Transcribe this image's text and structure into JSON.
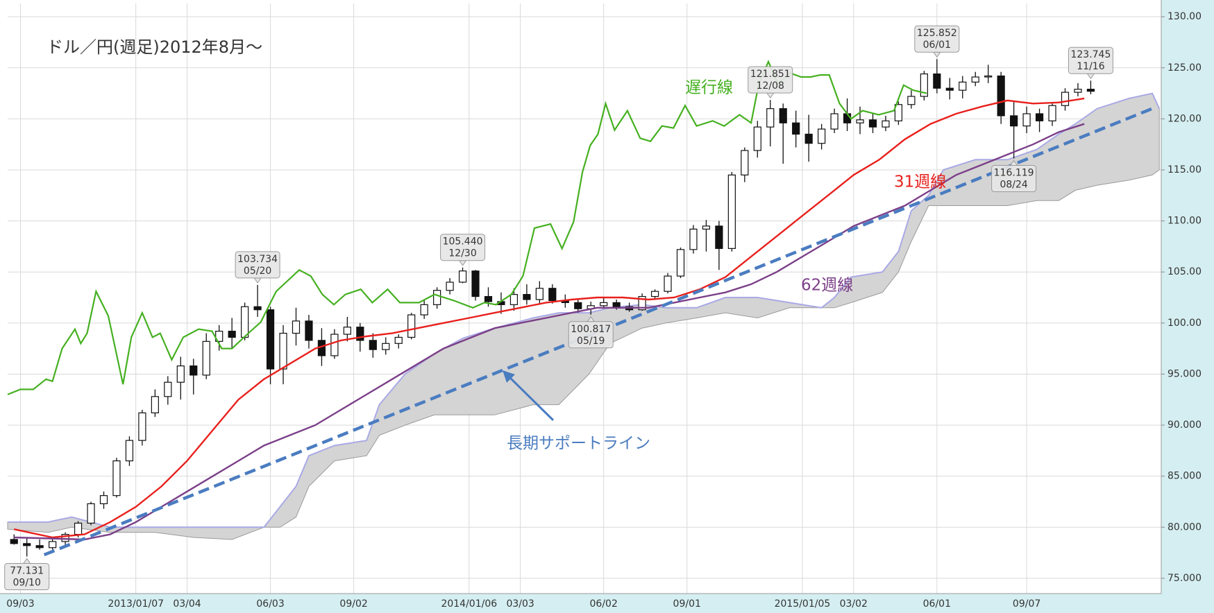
{
  "chart_data": {
    "type": "candlestick",
    "title": "ドル／円(週足)2012年8月～",
    "xlim": [
      -2,
      178
    ],
    "ylim": [
      73.5,
      131.3
    ],
    "grid": true,
    "xticks": [
      {
        "value": 0,
        "label": "09/03"
      },
      {
        "value": 18,
        "label": "2013/01/07"
      },
      {
        "value": 26,
        "label": "03/04"
      },
      {
        "value": 39,
        "label": "06/03"
      },
      {
        "value": 52,
        "label": "09/02"
      },
      {
        "value": 70,
        "label": "2014/01/06"
      },
      {
        "value": 78,
        "label": "03/03"
      },
      {
        "value": 91,
        "label": "06/02"
      },
      {
        "value": 104,
        "label": "09/01"
      },
      {
        "value": 122,
        "label": "2015/01/05"
      },
      {
        "value": 130,
        "label": "03/02"
      },
      {
        "value": 143,
        "label": "06/01"
      },
      {
        "value": 157,
        "label": "09/07"
      }
    ],
    "yticks": [
      {
        "value": 75,
        "label": "75.000"
      },
      {
        "value": 80,
        "label": "80.000"
      },
      {
        "value": 85,
        "label": "85.000"
      },
      {
        "value": 90,
        "label": "90.000"
      },
      {
        "value": 95,
        "label": "95.000"
      },
      {
        "value": 100,
        "label": "100.00"
      },
      {
        "value": 105,
        "label": "105.00"
      },
      {
        "value": 110,
        "label": "110.00"
      },
      {
        "value": 115,
        "label": "115.00"
      },
      {
        "value": 120,
        "label": "120.00"
      },
      {
        "value": 125,
        "label": "125.00"
      },
      {
        "value": 130,
        "label": "130.00"
      }
    ],
    "up_color": "#ffffff",
    "down_color": "#111111",
    "x": [
      -1,
      1,
      3,
      5,
      7,
      9,
      11,
      13,
      15,
      17,
      19,
      21,
      23,
      25,
      27,
      29,
      31,
      33,
      35,
      37,
      39,
      41,
      43,
      45,
      47,
      49,
      51,
      53,
      55,
      57,
      59,
      61,
      63,
      65,
      67,
      69,
      71,
      73,
      75,
      77,
      79,
      81,
      83,
      85,
      87,
      89,
      91,
      93,
      95,
      97,
      99,
      101,
      103,
      105,
      107,
      109,
      111,
      113,
      115,
      117,
      119,
      121,
      123,
      125,
      127,
      129,
      131,
      133,
      135,
      137,
      139,
      141,
      143,
      145,
      147,
      149,
      151,
      153,
      155,
      157,
      159,
      161,
      163,
      165,
      167
    ],
    "open": [
      78.8,
      78.4,
      78.2,
      78.0,
      78.6,
      79.3,
      80.4,
      82.3,
      83.1,
      86.5,
      88.5,
      91.2,
      92.8,
      94.2,
      95.8,
      94.9,
      98.2,
      99.2,
      98.6,
      101.6,
      101.3,
      95.5,
      99.0,
      100.2,
      98.3,
      96.8,
      98.9,
      99.6,
      98.3,
      97.4,
      98.0,
      98.6,
      100.8,
      101.8,
      103.2,
      104.0,
      105.1,
      102.6,
      102.1,
      101.8,
      102.8,
      102.3,
      103.4,
      102.2,
      102.0,
      101.4,
      101.7,
      102.0,
      101.6,
      101.3,
      102.6,
      103.1,
      104.6,
      107.2,
      109.2,
      109.5,
      107.3,
      114.5,
      116.9,
      119.2,
      121.0,
      119.6,
      118.5,
      117.6,
      119.0,
      120.5,
      119.6,
      119.9,
      119.2,
      119.8,
      121.4,
      122.2,
      124.4,
      123.0,
      122.8,
      123.6,
      124.1,
      124.2,
      120.3,
      119.3,
      120.5,
      119.8,
      121.3,
      122.6,
      122.9
    ],
    "high": [
      79.3,
      78.9,
      78.8,
      79.0,
      79.5,
      80.6,
      82.5,
      83.5,
      86.8,
      88.9,
      91.5,
      93.5,
      94.8,
      96.7,
      96.5,
      99.0,
      99.8,
      100.5,
      102.0,
      103.734,
      101.6,
      99.8,
      101.5,
      100.8,
      99.5,
      99.4,
      100.6,
      100.0,
      99.0,
      98.6,
      98.9,
      101.0,
      102.2,
      103.5,
      104.4,
      105.44,
      105.2,
      103.5,
      103.0,
      103.4,
      103.8,
      104.1,
      103.8,
      102.8,
      102.3,
      102.1,
      102.5,
      102.3,
      102.0,
      102.9,
      103.3,
      104.9,
      107.4,
      109.6,
      110.1,
      110.0,
      114.8,
      117.2,
      119.8,
      121.851,
      121.5,
      120.8,
      120.4,
      119.5,
      121.0,
      122.0,
      121.2,
      120.5,
      120.3,
      121.7,
      122.8,
      124.7,
      125.852,
      124.0,
      124.2,
      124.6,
      125.3,
      124.6,
      121.7,
      121.2,
      121.0,
      121.5,
      123.0,
      123.5,
      123.745
    ],
    "low": [
      78.3,
      77.131,
      77.8,
      77.8,
      78.2,
      79.0,
      80.2,
      81.8,
      82.9,
      86.0,
      88.0,
      90.8,
      92.0,
      92.5,
      93.0,
      94.5,
      97.3,
      97.5,
      98.3,
      100.6,
      94.0,
      94.0,
      97.8,
      97.5,
      95.8,
      96.5,
      98.2,
      97.2,
      96.6,
      96.9,
      97.5,
      98.4,
      100.4,
      101.4,
      102.8,
      103.9,
      102.2,
      101.6,
      100.9,
      101.2,
      101.8,
      101.8,
      101.9,
      101.5,
      101.0,
      100.817,
      101.4,
      101.3,
      101.1,
      101.2,
      102.3,
      102.9,
      104.4,
      106.8,
      107.0,
      105.2,
      107.0,
      113.8,
      116.2,
      117.3,
      115.6,
      117.2,
      115.8,
      117.0,
      118.6,
      118.8,
      118.5,
      118.6,
      118.8,
      119.4,
      121.0,
      121.8,
      122.5,
      121.9,
      122.0,
      123.2,
      123.5,
      119.5,
      116.119,
      118.6,
      118.7,
      119.3,
      120.8,
      122.2,
      122.4
    ],
    "close": [
      78.4,
      78.2,
      78.0,
      78.6,
      79.3,
      80.4,
      82.3,
      83.1,
      86.5,
      88.5,
      91.2,
      92.8,
      94.2,
      95.8,
      94.9,
      98.2,
      99.2,
      98.6,
      101.6,
      101.3,
      95.5,
      99.0,
      100.2,
      98.3,
      96.8,
      98.9,
      99.6,
      98.3,
      97.4,
      98.0,
      98.6,
      100.8,
      101.8,
      103.2,
      104.0,
      105.1,
      102.6,
      102.1,
      101.8,
      102.8,
      102.3,
      103.4,
      102.2,
      102.0,
      101.4,
      101.7,
      102.0,
      101.6,
      101.3,
      102.6,
      103.1,
      104.6,
      107.2,
      109.2,
      109.5,
      107.3,
      114.5,
      116.9,
      119.2,
      121.0,
      119.6,
      118.5,
      117.6,
      119.0,
      120.5,
      119.6,
      119.9,
      119.2,
      119.8,
      121.4,
      122.2,
      124.4,
      123.0,
      122.8,
      123.6,
      124.1,
      124.2,
      120.3,
      119.3,
      120.5,
      119.8,
      121.3,
      122.6,
      122.9,
      122.7
    ],
    "cloud": {
      "color": "#d4d4d4",
      "edge_color": "#a9a9e6",
      "x": [
        -2,
        4.3,
        8,
        14,
        21,
        27,
        33,
        38,
        40.5,
        43,
        45,
        49,
        54,
        56,
        60,
        64.6,
        69,
        74,
        80,
        84,
        88.7,
        92,
        97,
        100.7,
        105.5,
        110,
        115,
        120,
        125,
        127,
        129.6,
        134.5,
        137,
        139,
        141.7,
        144,
        149,
        154,
        158.6,
        162,
        164.6,
        168,
        173,
        176.6,
        177.7
      ],
      "upper": [
        80.5,
        80.5,
        81,
        80,
        80,
        80,
        80,
        80,
        82,
        84,
        87,
        88,
        88.5,
        92,
        95,
        97,
        98.5,
        99.5,
        100.5,
        101,
        101,
        101.5,
        101.8,
        101.5,
        101.5,
        102.5,
        102.5,
        102,
        101.5,
        102.5,
        104.5,
        105,
        107,
        111,
        112.5,
        115,
        116,
        116,
        117,
        118.5,
        119.5,
        121,
        122,
        122.5,
        121
      ],
      "lower": [
        79.8,
        79.5,
        80,
        79.5,
        79.5,
        79,
        78.8,
        80,
        80,
        81,
        84,
        86.5,
        87,
        89,
        90,
        91,
        91,
        91,
        92,
        92,
        95,
        98,
        99.5,
        100,
        100.5,
        101,
        100.5,
        101.5,
        101.5,
        101.5,
        102,
        103,
        105,
        108,
        111.5,
        111.5,
        111.5,
        111.5,
        112,
        112,
        113,
        113.5,
        114,
        114.5,
        115
      ]
    },
    "series": [
      {
        "name": "31週線",
        "color": "#e8201c",
        "x": [
          -1,
          5,
          10,
          14,
          18,
          22,
          26,
          30,
          34,
          38,
          42,
          46,
          50,
          54,
          58,
          62,
          66,
          70,
          74,
          78,
          82,
          86,
          90,
          94,
          98,
          102,
          106,
          110,
          114,
          118,
          122,
          126,
          130,
          134,
          138,
          142,
          146,
          150,
          154,
          158,
          162,
          166
        ],
        "values": [
          79.8,
          79.0,
          79.3,
          80.5,
          82,
          84,
          86.5,
          89.5,
          92.5,
          94.5,
          96,
          97.5,
          98.3,
          98.7,
          99,
          99.5,
          100,
          100.5,
          101,
          101.5,
          102,
          102.3,
          102.5,
          102.5,
          102.3,
          102.5,
          103.3,
          104.5,
          106.5,
          108.5,
          110.5,
          112.5,
          114.5,
          116,
          118,
          119.5,
          120.5,
          121.2,
          121.8,
          121.5,
          121.6,
          122
        ]
      },
      {
        "name": "62週線",
        "color": "#7b3f88",
        "x": [
          -1,
          10,
          14,
          18,
          22,
          26,
          30,
          34,
          38,
          42,
          46,
          50,
          54,
          58,
          62,
          66,
          70,
          74,
          78,
          82,
          86,
          90,
          94,
          98,
          102,
          106,
          110,
          114,
          118,
          122,
          126,
          130,
          134,
          138,
          142,
          146,
          150,
          154,
          158,
          162,
          166
        ],
        "values": [
          79,
          78.8,
          79.3,
          80.5,
          82,
          83.5,
          85,
          86.5,
          88,
          89,
          90,
          91.5,
          93,
          94.5,
          96,
          97.5,
          98.5,
          99.5,
          100,
          100.5,
          101,
          101.5,
          101.5,
          101.5,
          102,
          102.5,
          103,
          103.8,
          105,
          106.5,
          108,
          109.5,
          110.5,
          111.5,
          113,
          114.5,
          115.5,
          116.5,
          117.5,
          118.7,
          119.5
        ]
      },
      {
        "name": "遅行線",
        "color": "#45b020",
        "x": [
          -2,
          0,
          2,
          4,
          5,
          6.5,
          8.5,
          9.4,
          10.4,
          11.8,
          13.7,
          16,
          17.3,
          19,
          20.6,
          21.8,
          23.6,
          25.4,
          27.8,
          29.9,
          31.4,
          33,
          35.4,
          37.5,
          39.9,
          43.5,
          45.3,
          47.1,
          48.9,
          50.7,
          53.1,
          54.9,
          57.3,
          59.2,
          62.2,
          64.6,
          67.6,
          70.6,
          72.4,
          74.2,
          76.6,
          78.4,
          80.2,
          82.7,
          84.5,
          86.3,
          87.7,
          88.9,
          90.1,
          91.3,
          92.7,
          94.7,
          96.7,
          98.3,
          100.1,
          101.9,
          103.7,
          105.5,
          108,
          109.8,
          112.2,
          114,
          115.2,
          116.7,
          118.2,
          120,
          121.8,
          123.3,
          124.8,
          126.2,
          127.8,
          129.6,
          131.4,
          133.9,
          136.3,
          137.8,
          139.3,
          141.4
        ],
        "values": [
          93,
          93.5,
          93.5,
          94.5,
          94.3,
          97.5,
          99.4,
          98,
          99,
          103.1,
          100.7,
          94,
          98.6,
          101,
          98.6,
          99,
          96.4,
          98.6,
          99.4,
          99.2,
          97.5,
          97.5,
          98.9,
          100.1,
          103.1,
          105.2,
          104.6,
          102.8,
          101.8,
          102.8,
          103.3,
          102,
          103.3,
          102,
          102,
          102.8,
          102.2,
          101.5,
          102,
          101.8,
          102.8,
          104.6,
          109.3,
          109.7,
          107.3,
          109.9,
          114.8,
          117.4,
          118.5,
          121.5,
          118.9,
          120.8,
          118.1,
          117.8,
          119.3,
          119.1,
          121.3,
          119.3,
          119.8,
          119.3,
          120.4,
          119.6,
          123.4,
          125.6,
          123.4,
          124.5,
          124.1,
          124.1,
          124.3,
          124.3,
          121.5,
          120,
          120.8,
          120.4,
          120.8,
          123.3,
          122.8,
          122.5
        ]
      }
    ],
    "support_line": {
      "label": "長期サポートライン",
      "color": "#4a7cc0",
      "x": [
        3.7,
        176.6
      ],
      "values": [
        77.3,
        121
      ]
    },
    "annotations": [
      {
        "x": 1,
        "y": 77.131,
        "label": "77.131",
        "date": "09/10",
        "side": "below"
      },
      {
        "x": 37,
        "y": 103.734,
        "label": "103.734",
        "date": "05/20",
        "side": "above"
      },
      {
        "x": 69,
        "y": 105.44,
        "label": "105.440",
        "date": "12/30",
        "side": "above"
      },
      {
        "x": 89,
        "y": 100.817,
        "label": "100.817",
        "date": "05/19",
        "side": "below"
      },
      {
        "x": 117,
        "y": 121.851,
        "label": "121.851",
        "date": "12/08",
        "side": "above"
      },
      {
        "x": 143,
        "y": 125.852,
        "label": "125.852",
        "date": "06/01",
        "side": "above"
      },
      {
        "x": 155,
        "y": 116.119,
        "label": "116.119",
        "date": "08/24",
        "side": "below"
      },
      {
        "x": 167,
        "y": 123.745,
        "label": "123.745",
        "date": "11/16",
        "side": "above"
      }
    ]
  }
}
